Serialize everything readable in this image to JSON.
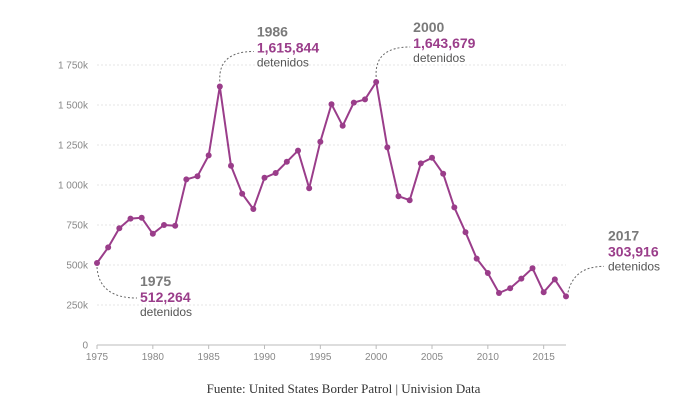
{
  "chart_data": {
    "type": "line",
    "x": [
      1975,
      1976,
      1977,
      1978,
      1979,
      1980,
      1981,
      1982,
      1983,
      1984,
      1985,
      1986,
      1987,
      1988,
      1989,
      1990,
      1991,
      1992,
      1993,
      1994,
      1995,
      1996,
      1997,
      1998,
      1999,
      2000,
      2001,
      2002,
      2003,
      2004,
      2005,
      2006,
      2007,
      2008,
      2009,
      2010,
      2011,
      2012,
      2013,
      2014,
      2015,
      2016,
      2017
    ],
    "series": [
      {
        "values": [
          512264,
          610000,
          730000,
          790000,
          795000,
          695000,
          750000,
          745000,
          1035000,
          1055000,
          1185000,
          1615844,
          1120000,
          945000,
          850000,
          1045000,
          1075000,
          1145000,
          1215000,
          980000,
          1270000,
          1505000,
          1370000,
          1515000,
          1535000,
          1643679,
          1235000,
          930000,
          905000,
          1135000,
          1170000,
          1070000,
          860000,
          705000,
          540000,
          450000,
          325000,
          355000,
          415000,
          480000,
          330000,
          410000,
          303916
        ],
        "color": "#9a3d8a"
      }
    ],
    "xlim": [
      1975,
      2017
    ],
    "ylim": [
      0,
      1750000
    ],
    "xticks": [
      1975,
      1980,
      1985,
      1990,
      1995,
      2000,
      2005,
      2010,
      2015
    ],
    "yticks": [
      {
        "value": 0,
        "label": "0"
      },
      {
        "value": 250000,
        "label": "250k"
      },
      {
        "value": 500000,
        "label": "500k"
      },
      {
        "value": 750000,
        "label": "750k"
      },
      {
        "value": 1000000,
        "label": "1 000k"
      },
      {
        "value": 1250000,
        "label": "1 250k"
      },
      {
        "value": 1500000,
        "label": "1 500k"
      },
      {
        "value": 1750000,
        "label": "1 750k"
      }
    ],
    "grid": true,
    "annotations": [
      {
        "x": 1975,
        "year": "1975",
        "value": "512,264",
        "unit": "detenidos"
      },
      {
        "x": 1986,
        "year": "1986",
        "value": "1,615,844",
        "unit": "detenidos"
      },
      {
        "x": 2000,
        "year": "2000",
        "value": "1,643,679",
        "unit": "detenidos"
      },
      {
        "x": 2017,
        "year": "2017",
        "value": "303,916",
        "unit": "detenidos"
      }
    ]
  },
  "source": "Fuente: United States Border Patrol | Univision Data"
}
